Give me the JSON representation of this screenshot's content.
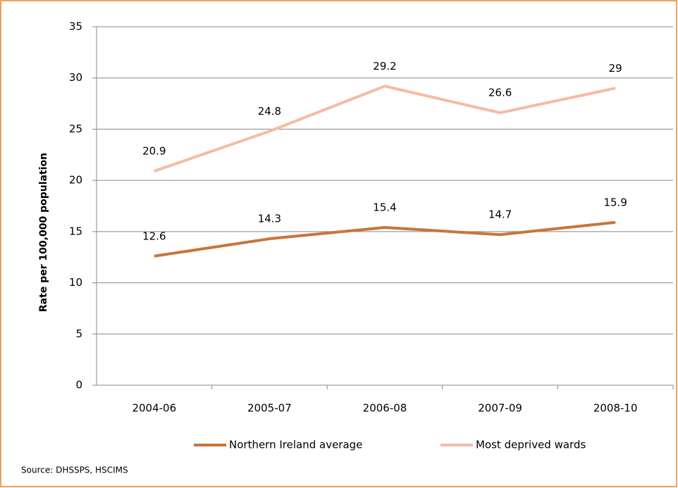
{
  "chart_data": {
    "type": "line",
    "y_label": "Rate per 100,000 population",
    "categories": [
      "2004-06",
      "2005-07",
      "2006-08",
      "2007-09",
      "2008-10"
    ],
    "series": [
      {
        "name": "Northern Ireland average",
        "color": "#c8753a",
        "values": [
          12.6,
          14.3,
          15.4,
          14.7,
          15.9
        ]
      },
      {
        "name": "Most deprived wards",
        "color": "#f6bba3",
        "values": [
          20.9,
          24.8,
          29.2,
          26.6,
          29
        ]
      }
    ],
    "ylim": [
      0,
      35
    ],
    "yticks": [
      0,
      5,
      10,
      15,
      20,
      25,
      30,
      35
    ],
    "grid": true,
    "source": "Source: DHSSPS, HSCIMS"
  }
}
